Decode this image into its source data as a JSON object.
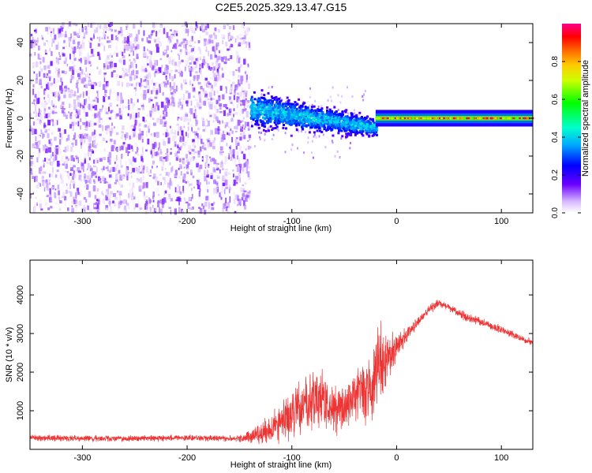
{
  "title": "C2E5.2025.329.13.47.G15",
  "colors": {
    "snr_line": "#ee3333",
    "spectrogram_noise": "#8a2be2",
    "frame": "#000000"
  },
  "chart_data": [
    {
      "type": "heatmap",
      "name": "spectrogram",
      "xlabel": "Height of straight line (km)",
      "ylabel": "Frequency (Hz)",
      "xlim": [
        -350,
        130
      ],
      "ylim": [
        -50,
        50
      ],
      "xticks": [
        -300,
        -200,
        -100,
        0,
        100
      ],
      "xtick_labels": [
        "-300",
        "-200",
        "-100",
        "0",
        "100"
      ],
      "yticks": [
        -40,
        -20,
        0,
        20,
        40
      ],
      "ytick_labels": [
        "-40",
        "-20",
        "0",
        "20",
        "40"
      ],
      "colorbar": {
        "label": "Normalized spectral amplitude",
        "range": [
          0,
          1
        ],
        "ticks": [
          0.0,
          0.2,
          0.4,
          0.6,
          0.8
        ],
        "tick_labels": [
          "0.0",
          "0.2",
          "0.4",
          "0.6",
          "0.8"
        ],
        "colormap": "rainbow (white, violet, blue, cyan, green, yellow, orange, red, magenta)"
      },
      "regions": [
        {
          "x_range": [
            -350,
            -140
          ],
          "freq_range": [
            -50,
            50
          ],
          "amplitude_range": [
            0.0,
            0.15
          ],
          "description": "broadband noise"
        },
        {
          "x_range": [
            -140,
            -20
          ],
          "center_freq": [
            5,
            -5
          ],
          "freq_spread": [
            8,
            4
          ],
          "amplitude_range": [
            0.2,
            0.45
          ],
          "description": "noisy signal"
        },
        {
          "x_range": [
            -20,
            130
          ],
          "center_freq": [
            0,
            0
          ],
          "freq_spread": [
            2,
            2
          ],
          "amplitude_range": [
            0.6,
            1.0
          ],
          "description": "clean tone"
        }
      ]
    },
    {
      "type": "line",
      "name": "snr",
      "xlabel": "Height of straight line (km)",
      "ylabel": "SNR (10 * v/v)",
      "xlim": [
        -350,
        130
      ],
      "ylim": [
        0,
        4900
      ],
      "xticks": [
        -300,
        -200,
        -100,
        0,
        100
      ],
      "xtick_labels": [
        "-300",
        "-200",
        "-100",
        "0",
        "100"
      ],
      "yticks": [
        1000,
        2000,
        3000,
        4000
      ],
      "ytick_labels": [
        "1000",
        "2000",
        "3000",
        "4000"
      ],
      "series": [
        {
          "name": "SNR",
          "x": [
            -350,
            -300,
            -250,
            -200,
            -150,
            -130,
            -110,
            -100,
            -90,
            -80,
            -70,
            -60,
            -50,
            -40,
            -30,
            -25,
            -20,
            -15,
            -10,
            -5,
            0,
            5,
            10,
            20,
            30,
            40,
            50,
            60,
            70,
            80,
            90,
            100,
            110,
            120,
            130
          ],
          "y": [
            300,
            280,
            280,
            300,
            280,
            400,
            700,
            900,
            1100,
            1300,
            1200,
            1000,
            1100,
            1400,
            1500,
            1600,
            2000,
            2200,
            2400,
            2500,
            2600,
            2800,
            3000,
            3300,
            3600,
            3800,
            3700,
            3500,
            3400,
            3300,
            3200,
            3100,
            3000,
            2850,
            2750
          ],
          "noise_amplitude": [
            150,
            150,
            150,
            150,
            150,
            500,
            1000,
            1200,
            1400,
            1500,
            1400,
            1300,
            1200,
            1300,
            1400,
            1500,
            1800,
            2000,
            1400,
            1000,
            700,
            500,
            350,
            250,
            220,
            220,
            200,
            200,
            200,
            200,
            200,
            200,
            180,
            180,
            180
          ]
        }
      ]
    }
  ]
}
